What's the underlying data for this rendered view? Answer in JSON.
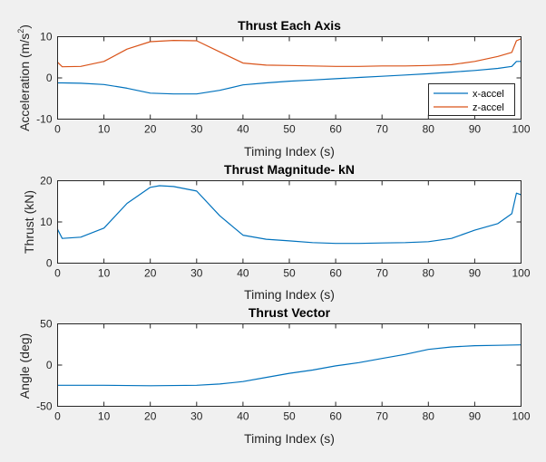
{
  "chart_data": [
    {
      "type": "line",
      "title": "Thrust Each Axis",
      "xlabel": "Timing Index (s)",
      "ylabel_parts": [
        "Acceleration (m/s",
        "2",
        ")"
      ],
      "xlim": [
        0,
        100
      ],
      "ylim": [
        -10,
        10
      ],
      "xticks": [
        "0",
        "10",
        "20",
        "30",
        "40",
        "50",
        "60",
        "70",
        "80",
        "90",
        "100"
      ],
      "yticks": [
        "-10",
        "0",
        "10"
      ],
      "legend": "bottom-right",
      "x": [
        0,
        1,
        5,
        10,
        15,
        20,
        25,
        30,
        35,
        40,
        45,
        50,
        55,
        60,
        65,
        70,
        75,
        80,
        85,
        90,
        95,
        98,
        99,
        100
      ],
      "series": [
        {
          "name": "x-accel",
          "color": "#0072bd",
          "values": [
            -1.2,
            -1.2,
            -1.3,
            -1.6,
            -2.5,
            -3.7,
            -3.9,
            -3.9,
            -3.0,
            -1.7,
            -1.2,
            -0.8,
            -0.5,
            -0.2,
            0.1,
            0.4,
            0.7,
            1.0,
            1.4,
            1.8,
            2.3,
            2.8,
            4.0,
            4.0
          ]
        },
        {
          "name": "z-accel",
          "color": "#d95319",
          "values": [
            3.8,
            2.7,
            2.8,
            4.0,
            7.0,
            8.8,
            9.1,
            9.0,
            6.3,
            3.6,
            3.1,
            3.0,
            2.9,
            2.8,
            2.8,
            2.9,
            2.9,
            3.0,
            3.2,
            4.0,
            5.2,
            6.2,
            9.0,
            9.5
          ]
        }
      ]
    },
    {
      "type": "line",
      "title": "Thrust Magnitude- kN",
      "xlabel": "Timing Index (s)",
      "ylabel": "Thrust (kN)",
      "xlim": [
        0,
        100
      ],
      "ylim": [
        0,
        20
      ],
      "xticks": [
        "0",
        "10",
        "20",
        "30",
        "40",
        "50",
        "60",
        "70",
        "80",
        "90",
        "100"
      ],
      "yticks": [
        "0",
        "10",
        "20"
      ],
      "x": [
        0,
        1,
        5,
        10,
        15,
        20,
        22,
        25,
        30,
        35,
        40,
        45,
        50,
        55,
        60,
        65,
        70,
        75,
        80,
        85,
        90,
        95,
        98,
        99,
        100
      ],
      "series": [
        {
          "color": "#0072bd",
          "values": [
            8.2,
            6.0,
            6.3,
            8.5,
            14.5,
            18.4,
            18.8,
            18.6,
            17.5,
            11.5,
            6.8,
            5.8,
            5.4,
            5.0,
            4.8,
            4.8,
            4.9,
            5.0,
            5.2,
            6.0,
            8.0,
            9.6,
            12.0,
            17.0,
            16.6
          ]
        }
      ]
    },
    {
      "type": "line",
      "title": "Thrust Vector",
      "xlabel": "Timing Index (s)",
      "ylabel": "Angle (deg)",
      "xlim": [
        0,
        100
      ],
      "ylim": [
        -50,
        50
      ],
      "xticks": [
        "0",
        "10",
        "20",
        "30",
        "40",
        "50",
        "60",
        "70",
        "80",
        "90",
        "100"
      ],
      "yticks": [
        "-50",
        "0",
        "50"
      ],
      "x": [
        0,
        10,
        20,
        30,
        35,
        40,
        45,
        50,
        55,
        60,
        65,
        70,
        75,
        80,
        85,
        90,
        95,
        100
      ],
      "series": [
        {
          "color": "#0072bd",
          "values": [
            -24.5,
            -24.5,
            -25.0,
            -24.5,
            -23.0,
            -20.0,
            -15.0,
            -10.0,
            -6.0,
            -1.0,
            3.0,
            8.0,
            13.0,
            19.0,
            22.0,
            23.5,
            24.0,
            24.5
          ]
        }
      ]
    }
  ]
}
